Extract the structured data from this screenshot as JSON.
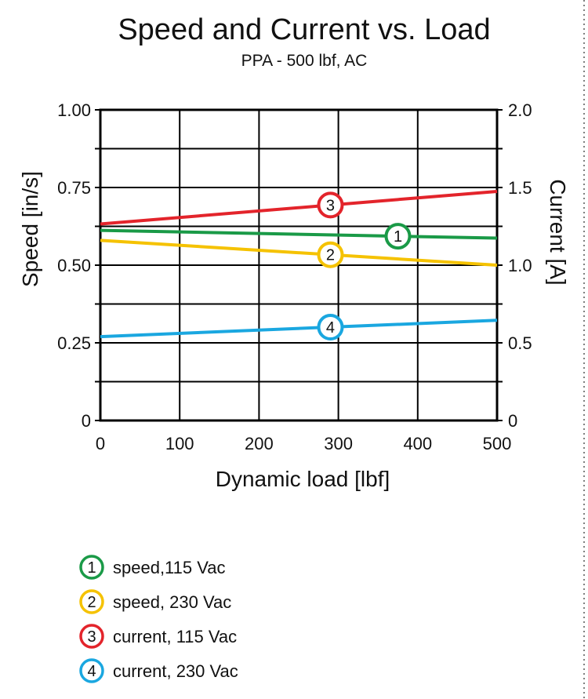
{
  "chart_data": {
    "type": "line",
    "title": "Speed and Current vs. Load",
    "subtitle": "PPA - 500 lbf, AC",
    "xlabel": "Dynamic load [lbf]",
    "ylabel": "Speed [in/s]",
    "ylabel_right": "Current [A]",
    "xlim": [
      0,
      500
    ],
    "ylim": [
      0,
      1.0
    ],
    "ylim_right": [
      0,
      2.0
    ],
    "x_ticks": [
      "0",
      "100",
      "200",
      "300",
      "400",
      "500"
    ],
    "y_ticks": [
      "0",
      "0.25",
      "0.50",
      "0.75",
      "1.00"
    ],
    "y_ticks_right": [
      "0",
      "0.5",
      "1.0",
      "1.5",
      "2.0"
    ],
    "grid": true,
    "legend_position": "bottom-left",
    "series": [
      {
        "name": "speed,115 Vac",
        "marker": "1",
        "axis": "left",
        "color": "#1a9a47",
        "x": [
          0,
          500
        ],
        "values": [
          0.612,
          0.587
        ],
        "marker_x": 375
      },
      {
        "name": "speed, 230 Vac",
        "marker": "2",
        "axis": "left",
        "color": "#f5c200",
        "x": [
          0,
          500
        ],
        "values": [
          0.58,
          0.5
        ],
        "marker_x": 290
      },
      {
        "name": "current, 115 Vac",
        "marker": "3",
        "axis": "right",
        "color": "#e3242b",
        "x": [
          0,
          500
        ],
        "values": [
          1.265,
          1.475
        ],
        "marker_x": 290
      },
      {
        "name": "current, 230 Vac",
        "marker": "4",
        "axis": "right",
        "color": "#1aa7e0",
        "x": [
          0,
          500
        ],
        "values": [
          0.54,
          0.645
        ],
        "marker_x": 290
      }
    ]
  }
}
